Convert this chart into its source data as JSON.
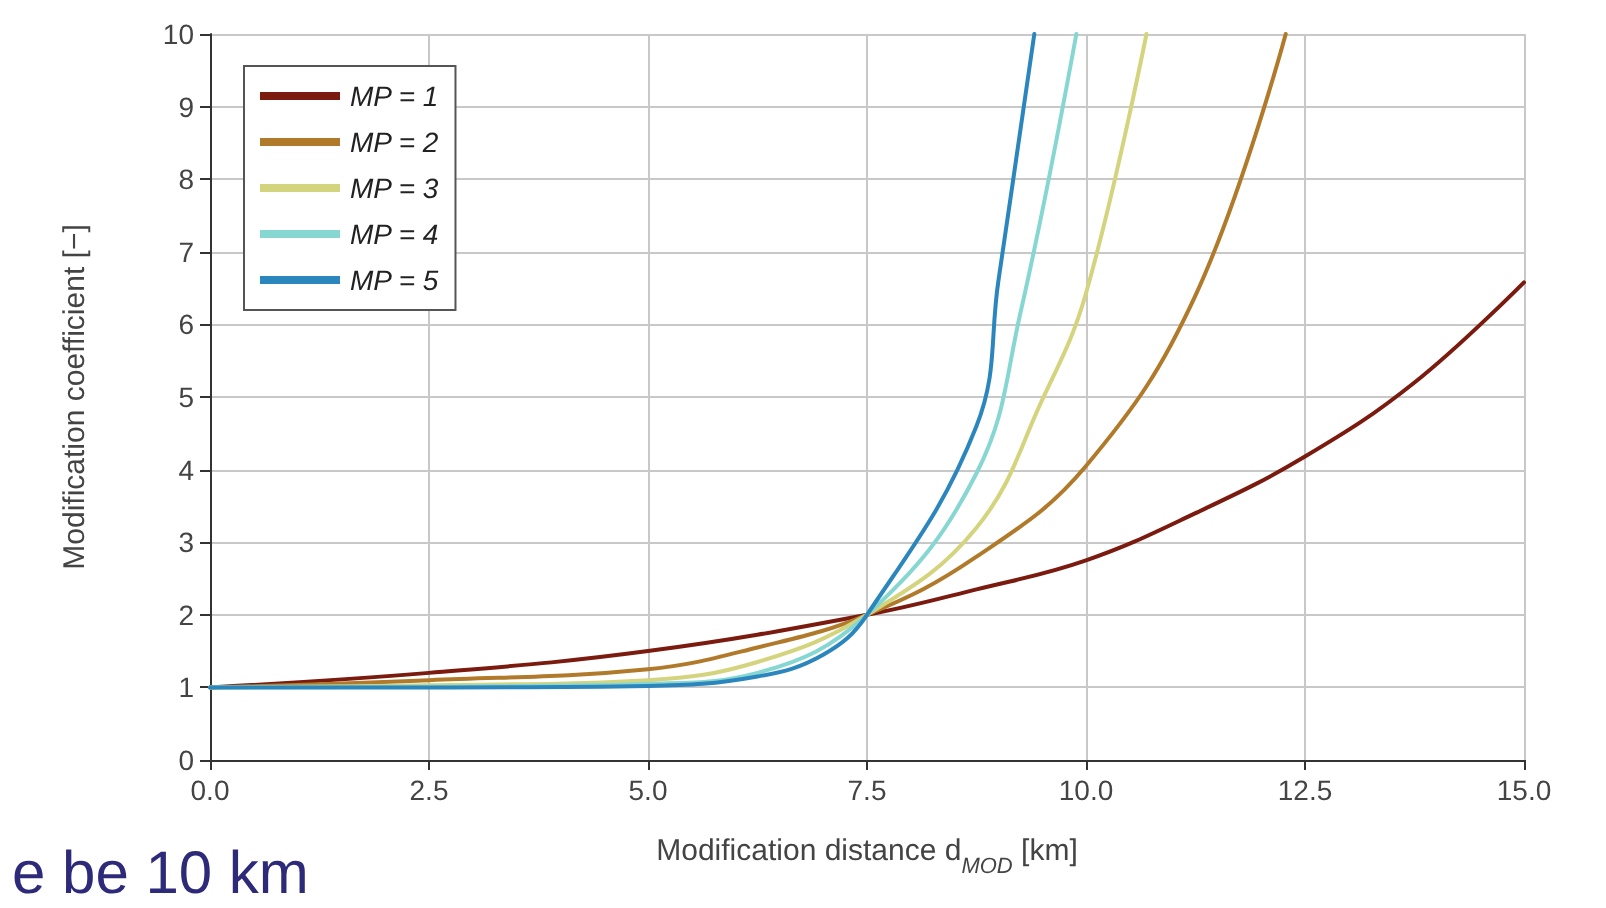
{
  "chart_data": {
    "type": "line",
    "xlabel": "Modification distance d$_{MOD}$ [km]",
    "ylabel": "Modification coefficient [−]",
    "xlim": [
      0,
      15
    ],
    "xticks": [
      {
        "value": 0,
        "label": "0.0"
      },
      {
        "value": 2.5,
        "label": "2.5"
      },
      {
        "value": 5,
        "label": "5.0"
      },
      {
        "value": 7.5,
        "label": "7.5"
      },
      {
        "value": 10,
        "label": "10.0"
      },
      {
        "value": 12.5,
        "label": "12.5"
      },
      {
        "value": 15,
        "label": "15.0"
      }
    ],
    "ylim": [
      0,
      10
    ],
    "yticks": [
      0,
      1,
      2,
      3,
      4,
      5,
      6,
      7,
      8,
      9,
      10
    ],
    "grid": true,
    "legend": "top left",
    "marker": "none",
    "line_style": "solid",
    "series": [
      {
        "name": "MP = 1",
        "color": "#7b1a0e",
        "x": [
          0,
          2.5,
          5,
          7.5,
          8.75,
          10,
          11.25,
          12.5,
          13.75,
          15
        ],
        "values": [
          1,
          1.2,
          1.5,
          2,
          2.35,
          2.75,
          3.4,
          4.18,
          5.2,
          6.58
        ]
      },
      {
        "name": "MP = 2",
        "color": "#b07a2a",
        "x": [
          0,
          2.5,
          5,
          6.25,
          7.5,
          8.75,
          10,
          11.25,
          12.28
        ],
        "values": [
          1,
          1.1,
          1.25,
          1.55,
          2,
          2.8,
          4.05,
          6.4,
          10
        ]
      },
      {
        "name": "MP = 3",
        "color": "#d4d47e",
        "x": [
          0,
          2.5,
          5,
          6.25,
          7.5,
          8.75,
          9.5,
          10,
          10.69
        ],
        "values": [
          1,
          1.03,
          1.1,
          1.35,
          2,
          3.2,
          4.96,
          6.43,
          10
        ]
      },
      {
        "name": "MP = 4",
        "color": "#86d6d2",
        "x": [
          0,
          2.5,
          5,
          6.25,
          7.5,
          8.75,
          9.25,
          9.89
        ],
        "values": [
          1,
          1.01,
          1.05,
          1.2,
          2,
          3.95,
          6.15,
          10
        ]
      },
      {
        "name": "MP = 5",
        "color": "#2a86bd",
        "x": [
          0,
          2.5,
          5,
          6.25,
          7,
          7.5,
          8.75,
          9,
          9.41
        ],
        "values": [
          1,
          1,
          1.02,
          1.15,
          1.45,
          2,
          4.6,
          6.6,
          10
        ]
      }
    ],
    "annotations": [
      "e be 10 km"
    ]
  }
}
